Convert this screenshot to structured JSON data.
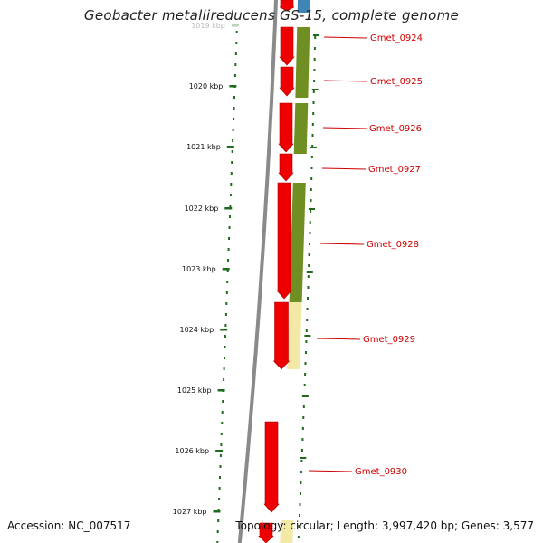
{
  "title": "Geobacter metallireducens GS-15, complete genome",
  "accession": "Accession: NC_007517",
  "summary": "Topology: circular; Length: 3,997,420 bp; Genes: 3,577",
  "colors": {
    "feature": "#ee0000",
    "feature_dark": "#b00000",
    "cog_green": "#6f8f23",
    "cog_light": "#f2e9a6",
    "cog_blue": "#3f86b6",
    "backbone": "#8a8a8a",
    "ticks": "#1e6b1e",
    "label": "#cc0000"
  },
  "ticks": [
    {
      "label": "1019 kbp",
      "faded": true
    },
    {
      "label": "1020 kbp"
    },
    {
      "label": "1021 kbp"
    },
    {
      "label": "1022 kbp"
    },
    {
      "label": "1023 kbp"
    },
    {
      "label": "1024 kbp"
    },
    {
      "label": "1025 kbp"
    },
    {
      "label": "1026 kbp"
    },
    {
      "label": "1027 kbp"
    }
  ],
  "genes": [
    {
      "name": "Gmet_0924"
    },
    {
      "name": "Gmet_0925"
    },
    {
      "name": "Gmet_0926"
    },
    {
      "name": "Gmet_0927"
    },
    {
      "name": "Gmet_0928"
    },
    {
      "name": "Gmet_0929"
    },
    {
      "name": "Gmet_0930"
    }
  ]
}
